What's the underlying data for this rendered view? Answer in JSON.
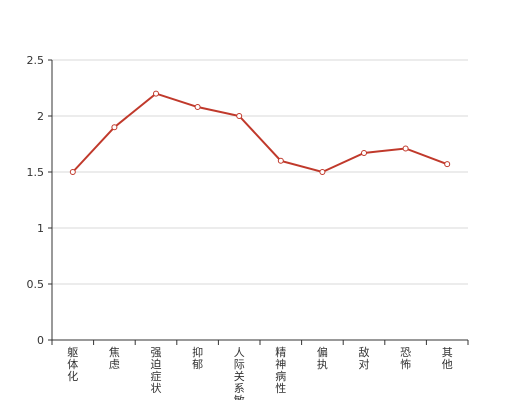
{
  "chart_data": {
    "type": "line",
    "title": "",
    "xlabel": "",
    "ylabel": "",
    "categories": [
      "躯体化",
      "焦虑",
      "强迫症状",
      "抑郁",
      "人际关系敏感",
      "精神病性",
      "偏执",
      "敌对",
      "恐怖",
      "其他"
    ],
    "series": [
      {
        "values": [
          1.5,
          1.9,
          2.2,
          2.08,
          2.0,
          1.6,
          1.5,
          1.67,
          1.71,
          1.57
        ],
        "color": "#c0392b"
      }
    ],
    "ylim": [
      0,
      2.5
    ],
    "yticks": [
      "0",
      "0.5",
      "1",
      "1.5",
      "2",
      "2.5"
    ],
    "grid": "horizontal",
    "legend": "none"
  }
}
